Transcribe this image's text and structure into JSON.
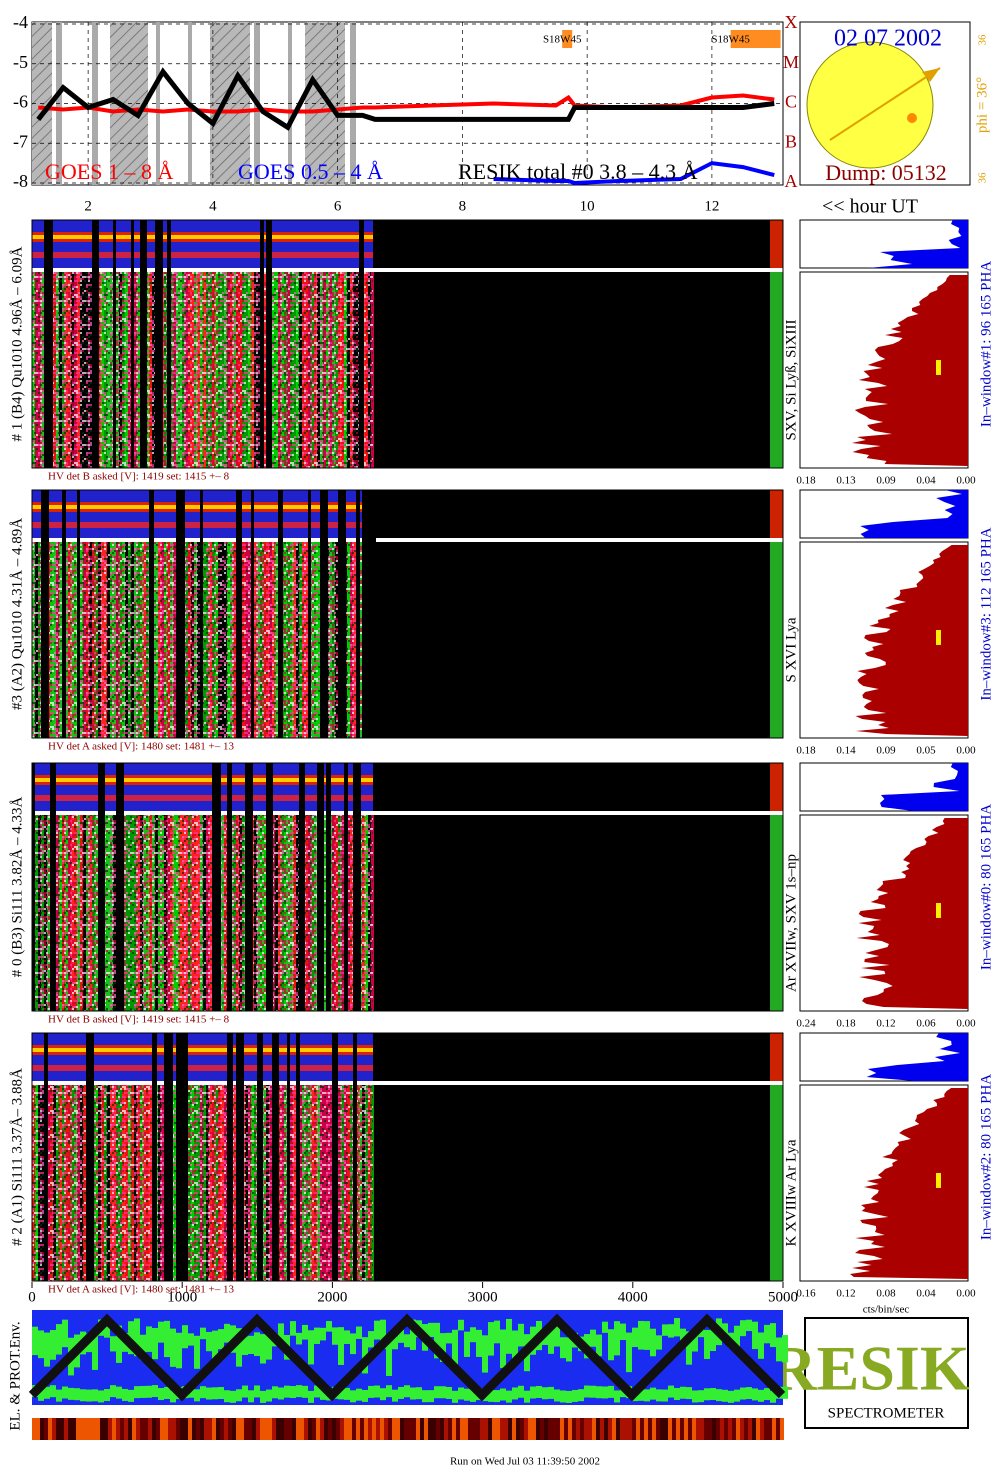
{
  "chart_data": {
    "type": "line",
    "x": [
      1.2,
      1.6,
      2.0,
      2.4,
      2.8,
      3.2,
      3.6,
      4.0,
      4.4,
      4.8,
      5.2,
      5.6,
      6.0,
      6.4,
      6.6,
      7.5,
      8.5,
      9.5,
      9.7,
      9.8,
      10.5,
      11.5,
      12.0,
      12.5,
      13.0
    ],
    "xlim": [
      1.1,
      13.14
    ],
    "xticks": [
      2,
      4,
      6,
      8,
      10,
      12
    ],
    "ylim": [
      -8.05,
      -3.95
    ],
    "yticks": [
      -4,
      -5,
      -6,
      -7,
      -8
    ],
    "y2ticks": [
      {
        "value": -8,
        "label": "A"
      },
      {
        "value": -7,
        "label": "B"
      },
      {
        "value": -6,
        "label": "C"
      },
      {
        "value": -5,
        "label": "M"
      },
      {
        "value": -4,
        "label": "X"
      }
    ],
    "series": [
      {
        "name": "GOES 1 – 8 Å",
        "color": "#ff0000",
        "values": [
          -6.1,
          -6.15,
          -6.1,
          -6.2,
          -6.15,
          -6.2,
          -6.15,
          -6.2,
          -6.2,
          -6.15,
          -6.2,
          -6.2,
          -6.15,
          -6.1,
          -6.1,
          -6.05,
          -6.0,
          -6.05,
          -5.85,
          -6.05,
          -6.1,
          -6.05,
          -5.85,
          -5.8,
          -5.9
        ]
      },
      {
        "name": "GOES 0.5 – 4 Å",
        "color": "#0000ff",
        "values": [
          null,
          null,
          null,
          null,
          null,
          null,
          null,
          null,
          null,
          null,
          null,
          null,
          null,
          null,
          null,
          null,
          -7.9,
          -7.95,
          -7.95,
          -8.0,
          -7.95,
          -7.9,
          -7.5,
          -7.6,
          -7.8
        ]
      },
      {
        "name": "RESIK total #0  3.8 – 4.3 Å",
        "color": "#000000",
        "values": [
          -6.4,
          -5.6,
          -6.1,
          -5.9,
          -6.3,
          -5.2,
          -6.0,
          -6.5,
          -5.3,
          -6.2,
          -6.6,
          -5.4,
          -6.3,
          -6.3,
          -6.4,
          -6.4,
          -6.4,
          -6.4,
          -6.4,
          -6.1,
          -6.1,
          -6.1,
          -6.1,
          -6.1,
          -6.0
        ]
      }
    ],
    "annotations": [
      {
        "text": "S18W45",
        "x": 9.6
      },
      {
        "text": "S18W45",
        "x": 12.3
      }
    ],
    "xlabel": "<< hour UT"
  },
  "sun": {
    "date": "02 07 2002",
    "dump": "Dump: 05132",
    "phi": "phi = 36°",
    "left": "36",
    "right": "36"
  },
  "panels": [
    {
      "label": "# 1 (B4) Qu1010 4.96Å – 6.09Å",
      "lines": "SXV, Si Lyß, SiXIII",
      "hv": "HV det B asked [V]:  1419 set:  1415  +–    8",
      "window": "In–window#1:   96 165  PHA",
      "ticks": [
        "0.18",
        "0.13",
        "0.09",
        "0.04",
        "0.00"
      ]
    },
    {
      "label": "#3 (A2) Qu1010  4.31Å – 4.89Å",
      "lines": "S XVI Lya",
      "hv": "HV det A asked [V]:  1480 set:  1481  +–    13",
      "window": "In–window#3:   112 165  PHA",
      "ticks": [
        "0.18",
        "0.14",
        "0.09",
        "0.05",
        "0.00"
      ]
    },
    {
      "label": "# 0 (B3) Si111  3.82Å – 4.33Å",
      "lines": "Ar XVIIw,  SXV 1s–np",
      "hv": "HV det B asked [V]:  1419 set:  1415  +–    8",
      "window": "In–window#0:   80 165  PHA",
      "ticks": [
        "0.24",
        "0.18",
        "0.12",
        "0.06",
        "0.00"
      ]
    },
    {
      "label": "# 2 (A1) Si111  3.37Å– 3.88Å",
      "lines": "K XVIIIw  Ar Lya",
      "hv": "HV det A asked [V]:  1480 set:  1481  +–    13",
      "window": "In–window#2:   80 165  PHA",
      "ticks": [
        "0.16",
        "0.12",
        "0.08",
        "0.04",
        "0.00"
      ]
    }
  ],
  "counts_axis": {
    "lim": [
      0,
      5000
    ],
    "ticks": [
      0,
      1000,
      2000,
      3000,
      4000,
      5000
    ],
    "unit": "cts/bin/sec"
  },
  "env": {
    "label": "EL. & PROT.Env."
  },
  "logo": {
    "name": "RESIK",
    "word": "SPECTROMETER"
  },
  "footer": "Run on Wed Jul 03 11:39:50 2002"
}
